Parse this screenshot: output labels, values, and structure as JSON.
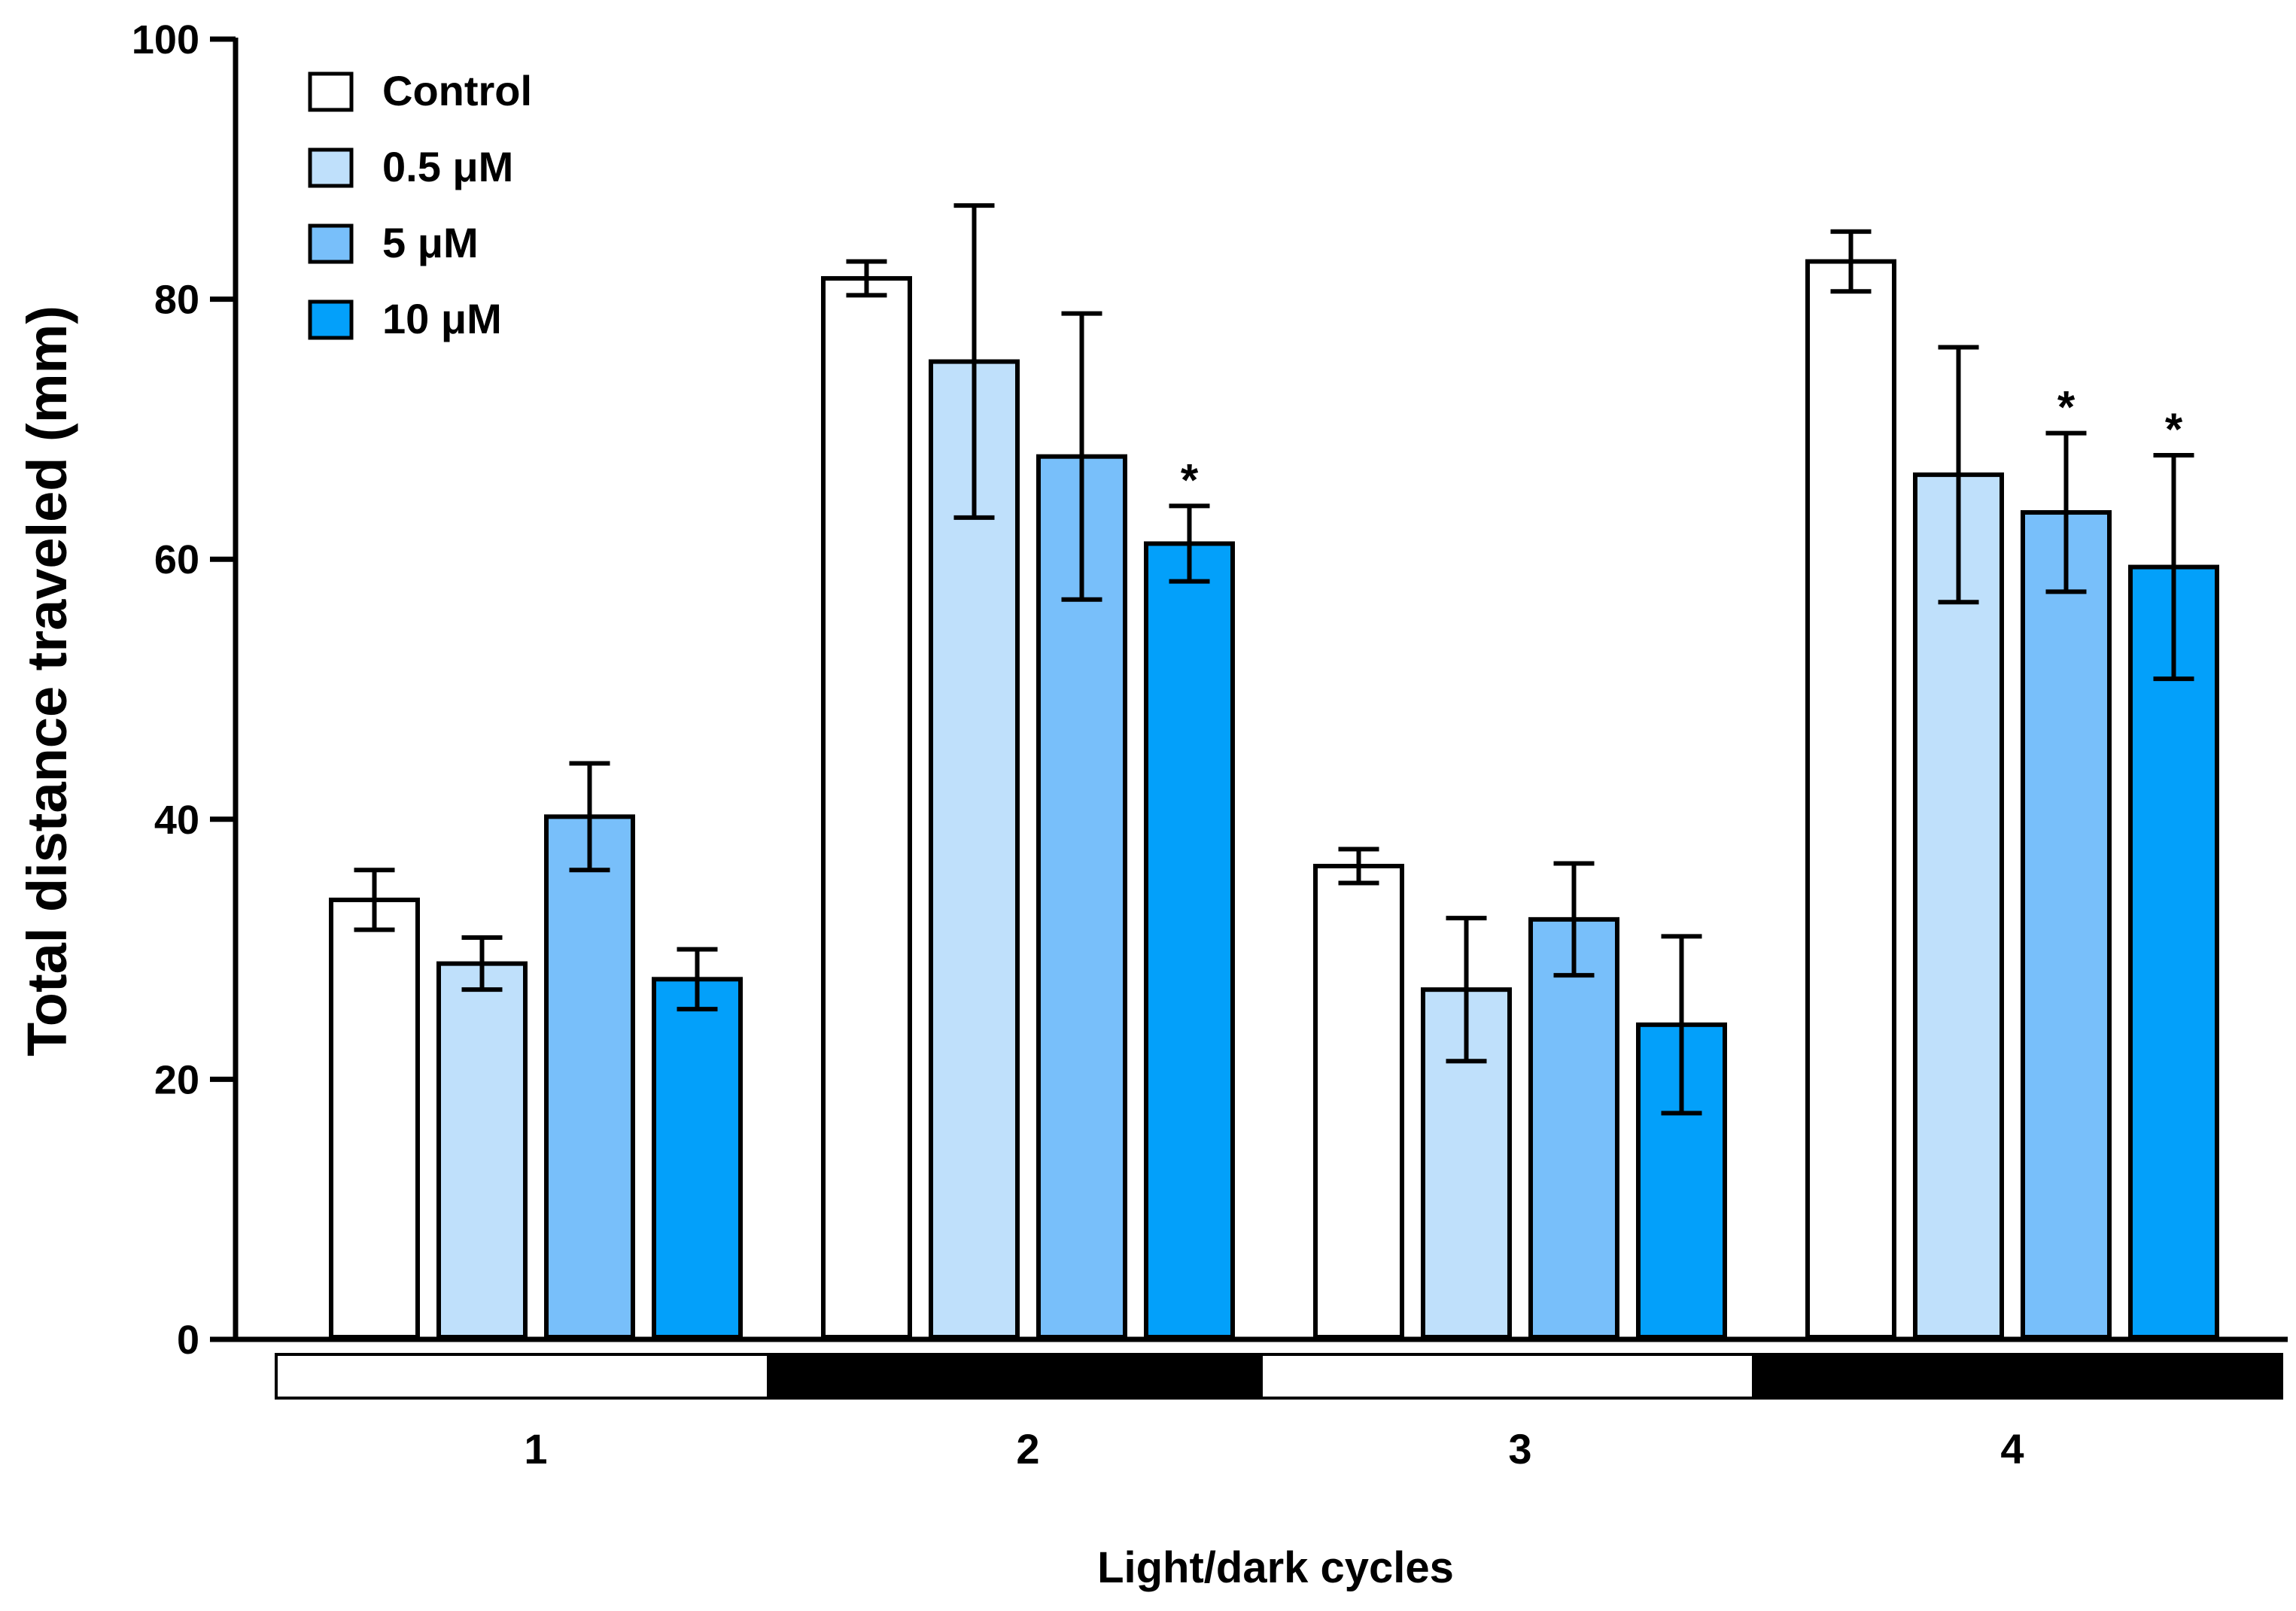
{
  "chart_data": {
    "type": "bar",
    "title": "",
    "xlabel": "Light/dark cycles",
    "ylabel": "Total distance traveled (mm)",
    "ylim": [
      0,
      100
    ],
    "yticks": [
      0,
      20,
      40,
      60,
      80,
      100
    ],
    "yticks_labels": [
      "0",
      "20",
      "40",
      "60",
      "80",
      "100"
    ],
    "categories": [
      "1",
      "2",
      "3",
      "4"
    ],
    "cycle_phases": [
      "light",
      "dark",
      "light",
      "dark"
    ],
    "legend_position": "top-left",
    "significance_marker": "*",
    "series": [
      {
        "name": "Control",
        "color": "#ffffff",
        "values": [
          33.8,
          81.6,
          36.4,
          82.9
        ],
        "errors": [
          2.3,
          1.3,
          1.3,
          2.3
        ],
        "significant": [
          false,
          false,
          false,
          false
        ]
      },
      {
        "name": "0.5 μM",
        "color": "#bfe0fb",
        "values": [
          28.9,
          75.2,
          26.9,
          66.5
        ],
        "errors": [
          2.0,
          12.0,
          5.5,
          9.8
        ],
        "significant": [
          false,
          false,
          false,
          false
        ]
      },
      {
        "name": "5 μM",
        "color": "#78bffa",
        "values": [
          40.2,
          67.9,
          32.3,
          63.6
        ],
        "errors": [
          4.1,
          11.0,
          4.3,
          6.1
        ],
        "significant": [
          false,
          false,
          false,
          true
        ]
      },
      {
        "name": "10 μM",
        "color": "#03a0fa",
        "values": [
          27.7,
          61.2,
          24.2,
          59.4
        ],
        "errors": [
          2.3,
          2.9,
          6.8,
          8.6
        ],
        "significant": [
          false,
          true,
          false,
          true
        ]
      }
    ]
  }
}
